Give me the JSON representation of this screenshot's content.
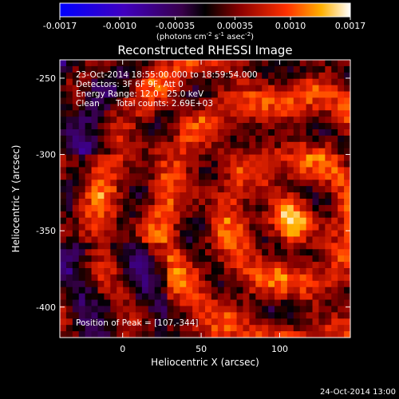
{
  "chart_data": {
    "type": "heatmap",
    "title": "Reconstructed RHESSI Image",
    "xlabel": "Heliocentric X (arcsec)",
    "ylabel": "Heliocentric Y (arcsec)",
    "xlim": [
      -40,
      145
    ],
    "ylim": [
      -420,
      -238
    ],
    "x_ticks": [
      0,
      50,
      100
    ],
    "y_ticks": [
      -250,
      -300,
      -350,
      -400
    ],
    "colorbar": {
      "min": -0.0017,
      "max": 0.0017,
      "tick_labels": [
        "-0.0017",
        "-0.0010",
        "-0.00035",
        "0.00035",
        "0.0010",
        "0.0017"
      ],
      "unit_pre": "(photons cm",
      "unit_e1": "-2",
      "unit_mid1": " s",
      "unit_e2": "-1",
      "unit_mid2": " asec",
      "unit_e3": "-2",
      "unit_post": ")"
    },
    "annotations": {
      "time_range": "23-Oct-2014 18:55:00.000 to 18:59:54.000",
      "detectors": "Detectors: 3F 6F 9F, Att 0",
      "energy": "Energy Range: 12.0 - 25.0 keV",
      "clean_label": "Clean",
      "total_counts": "Total counts: 2.69E+03",
      "peak": "Position of Peak = [107,-344]"
    },
    "peak_position": [
      107,
      -344
    ],
    "footer": "24-Oct-2014 13:00"
  }
}
